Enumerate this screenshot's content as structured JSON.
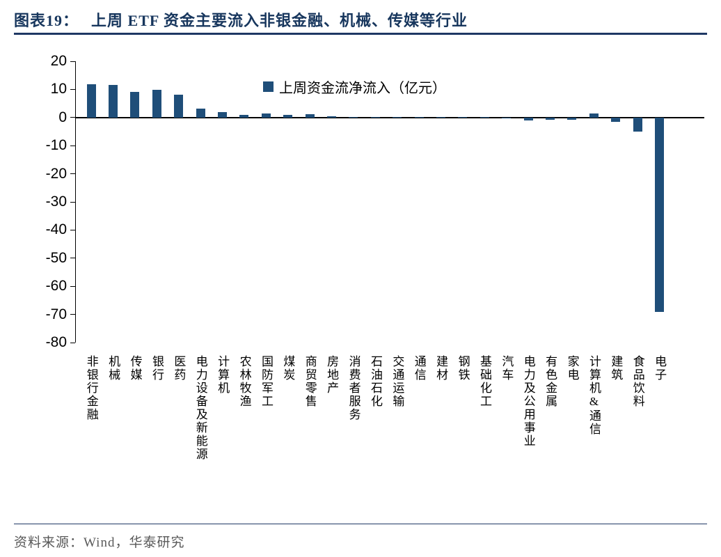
{
  "header": {
    "figure_label": "图表19：",
    "title": "上周 ETF 资金主要流入非银金融、机械、传媒等行业"
  },
  "footer": {
    "source_text": "资料来源：Wind，华泰研究"
  },
  "colors": {
    "bar": "#1F4E79",
    "title": "#17365D",
    "rule": "#1F3864",
    "axis": "#000000",
    "footer_text": "#595959"
  },
  "chart_data": {
    "type": "bar",
    "legend": "上周资金流净流入（亿元）",
    "legend_position": "top-center-inside",
    "ylabel": "",
    "xlabel": "",
    "ylim": [
      -80,
      20
    ],
    "y_ticks": [
      20,
      10,
      0,
      -10,
      -20,
      -30,
      -40,
      -50,
      -60,
      -70,
      -80
    ],
    "grid": false,
    "unit": "亿元",
    "categories": [
      "非银行金融",
      "机械",
      "传媒",
      "银行",
      "医药",
      "电力设备及新能源",
      "计算机",
      "农林牧渔",
      "国防军工",
      "煤炭",
      "商贸零售",
      "房地产",
      "消费者服务",
      "石油石化",
      "交通运输",
      "通信",
      "建材",
      "钢铁",
      "基础化工",
      "汽车",
      "电力及公用事业",
      "有色金属",
      "家电",
      "计算机&通信",
      "建筑",
      "食品饮料",
      "电子"
    ],
    "values": [
      11.8,
      11.6,
      9.0,
      9.8,
      8.0,
      3.2,
      2.0,
      1.0,
      1.4,
      1.0,
      1.3,
      0.5,
      0.3,
      0.2,
      0.2,
      0.1,
      0.1,
      0.1,
      0.1,
      -0.3,
      -1.0,
      -0.8,
      -0.8,
      1.5,
      -1.5,
      -5.0,
      -69.0
    ]
  }
}
